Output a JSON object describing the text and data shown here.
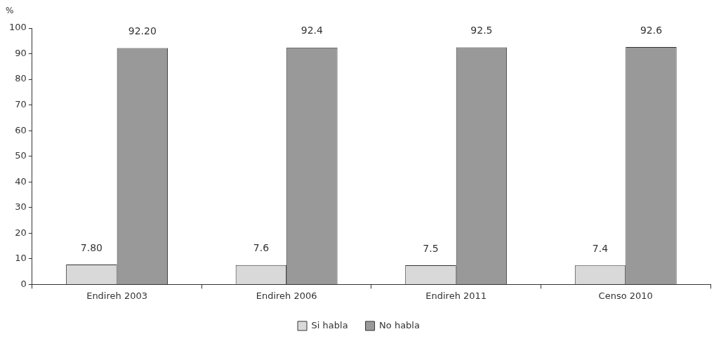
{
  "chart_data": {
    "type": "bar",
    "ylabel": "%",
    "categories": [
      "Endireh 2003",
      "Endireh 2006",
      "Endireh 2011",
      "Censo 2010"
    ],
    "series": [
      {
        "name": "Si habla",
        "color": "#d9d9d9",
        "values": [
          7.8,
          7.6,
          7.5,
          7.4
        ],
        "value_labels": [
          "7.80",
          "7.6",
          "7.5",
          "7.4"
        ]
      },
      {
        "name": "No habla",
        "color": "#999999",
        "values": [
          92.2,
          92.4,
          92.5,
          92.6
        ],
        "value_labels": [
          "92.20",
          "92.4",
          "92.5",
          "92.6"
        ]
      }
    ],
    "ylim": [
      0,
      100
    ],
    "yticks": [
      0,
      10,
      20,
      30,
      40,
      50,
      60,
      70,
      80,
      90,
      100
    ],
    "grid": false,
    "legend": "bottom"
  }
}
